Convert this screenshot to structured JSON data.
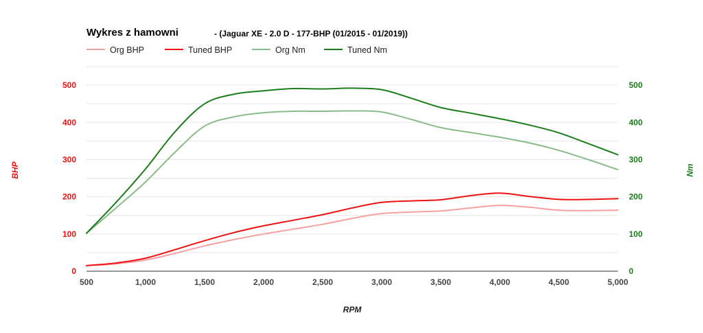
{
  "chart_data": {
    "type": "line",
    "title": "Wykres z hamowni",
    "subtitle": "- (Jaguar XE - 2.0 D - 177-BHP (01/2015 - 01/2019))",
    "xlabel": "RPM",
    "ylabel_left": "BHP",
    "ylabel_right": "Nm",
    "xlim": [
      500,
      5000
    ],
    "ylim_left": [
      0,
      550
    ],
    "ylim_right": [
      0,
      550
    ],
    "x_ticks": [
      500,
      1000,
      1500,
      2000,
      2500,
      3000,
      3500,
      4000,
      4500,
      5000
    ],
    "x_tick_labels": [
      "500",
      "1,000",
      "1,500",
      "2,000",
      "2,500",
      "3,000",
      "3,500",
      "4,000",
      "4,500",
      "5,000"
    ],
    "y_ticks_left": [
      0,
      100,
      200,
      300,
      400,
      500
    ],
    "y_tick_labels_left": [
      "0",
      "100",
      "200",
      "300",
      "400",
      "500"
    ],
    "y_ticks_right": [
      0,
      100,
      200,
      300,
      400,
      500
    ],
    "y_tick_labels_right": [
      "0",
      "100",
      "200",
      "300",
      "400",
      "500"
    ],
    "grid": true,
    "legend_position": "top-left",
    "x": [
      500,
      750,
      1000,
      1250,
      1500,
      1750,
      2000,
      2250,
      2500,
      2750,
      3000,
      3250,
      3500,
      3750,
      4000,
      4250,
      4500,
      4750,
      5000
    ],
    "series": [
      {
        "name": "Org BHP",
        "axis": "left",
        "color": "#f4a0a0",
        "values": [
          15,
          20,
          30,
          48,
          68,
          85,
          100,
          113,
          126,
          142,
          155,
          159,
          162,
          170,
          177,
          172,
          164,
          163,
          164
        ]
      },
      {
        "name": "Tuned BHP",
        "axis": "left",
        "color": "#ee1111",
        "values": [
          15,
          22,
          35,
          58,
          82,
          104,
          122,
          137,
          152,
          170,
          185,
          189,
          192,
          203,
          210,
          201,
          193,
          193,
          195
        ]
      },
      {
        "name": "Org Nm",
        "axis": "right",
        "color": "#88bb88",
        "values": [
          102,
          170,
          240,
          320,
          390,
          415,
          426,
          430,
          430,
          431,
          428,
          408,
          386,
          373,
          360,
          345,
          325,
          300,
          273
        ]
      },
      {
        "name": "Tuned Nm",
        "axis": "right",
        "color": "#1a7d1a",
        "values": [
          102,
          185,
          275,
          375,
          450,
          476,
          485,
          491,
          490,
          492,
          488,
          465,
          440,
          425,
          410,
          393,
          372,
          343,
          313
        ]
      }
    ],
    "colors": {
      "left_axis": "#ee1111",
      "right_axis": "#1a7d1a",
      "x_axis": "#444444",
      "grid": "#e6e6e6"
    }
  }
}
